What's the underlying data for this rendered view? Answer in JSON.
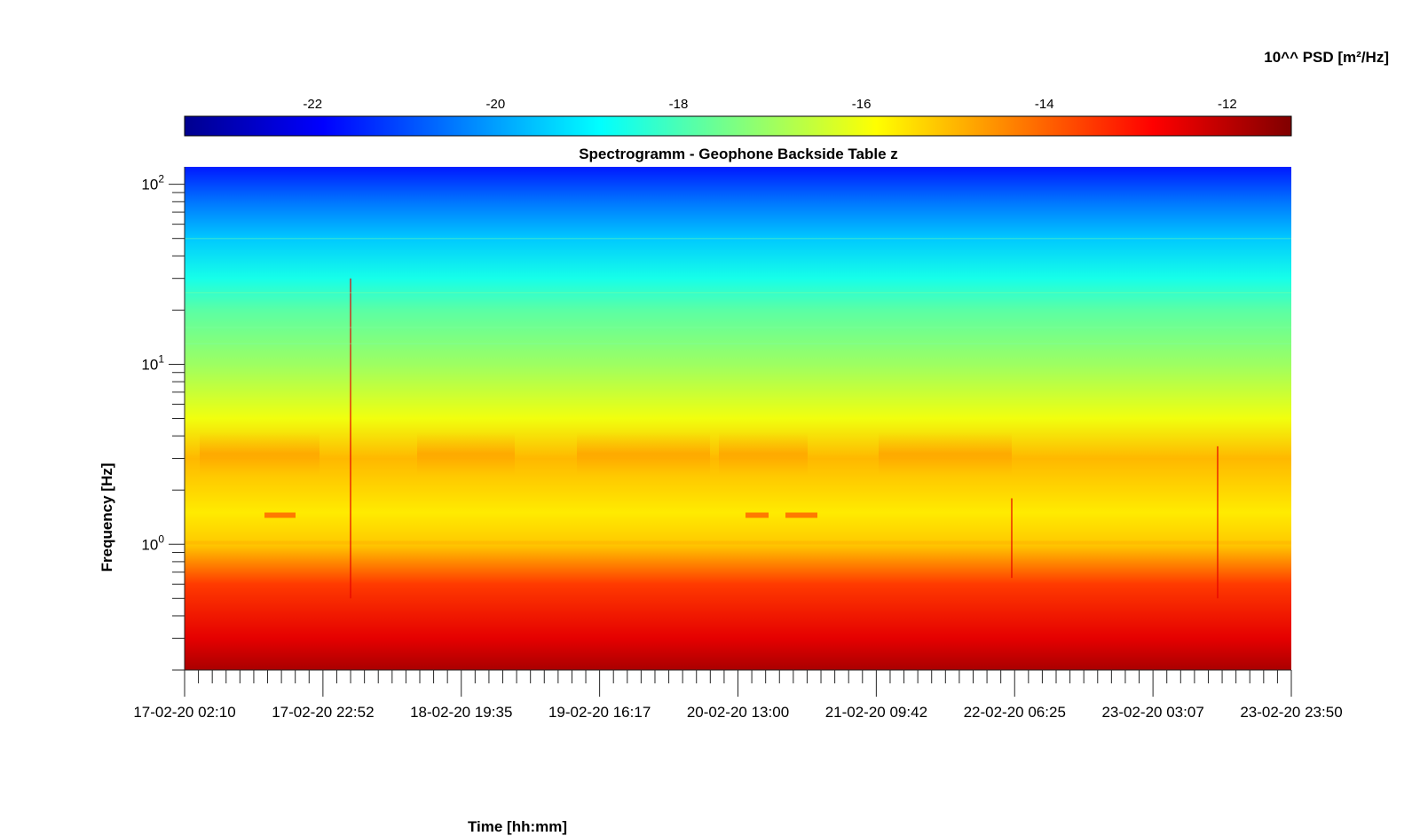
{
  "chart_data": {
    "type": "heatmap",
    "title": "Spectrogramm - Geophone Backside Table z",
    "xlabel": "Time [hh:mm]",
    "ylabel": "Frequency [Hz]",
    "y_scale": "log",
    "ylim": [
      0.2,
      125
    ],
    "y_ticks": [
      {
        "value": 1,
        "base": "10",
        "exp": "0"
      },
      {
        "value": 10,
        "base": "10",
        "exp": "1"
      },
      {
        "value": 100,
        "base": "10",
        "exp": "2"
      }
    ],
    "x_ticks": [
      "17-02-20 02:10",
      "17-02-20 22:52",
      "18-02-20 19:35",
      "19-02-20 16:17",
      "20-02-20 13:00",
      "21-02-20 09:42",
      "22-02-20 06:25",
      "23-02-20 03:07",
      "23-02-20 23:50"
    ],
    "colorbar": {
      "label": "10^^ PSD [m²/Hz]",
      "range": [
        -23.4,
        -11.3
      ],
      "ticks": [
        -22,
        -20,
        -18,
        -16,
        -14,
        -12
      ],
      "colormap": "jet"
    },
    "grid": false,
    "psd_profile": [
      {
        "freq_hz": 120,
        "log10_psd": -21.5
      },
      {
        "freq_hz": 80,
        "log10_psd": -20.5
      },
      {
        "freq_hz": 50,
        "log10_psd": -19.5
      },
      {
        "freq_hz": 30,
        "log10_psd": -18.6
      },
      {
        "freq_hz": 20,
        "log10_psd": -17.8
      },
      {
        "freq_hz": 10,
        "log10_psd": -17.0
      },
      {
        "freq_hz": 5,
        "log10_psd": -16.0
      },
      {
        "freq_hz": 3,
        "log10_psd": -15.0
      },
      {
        "freq_hz": 1.5,
        "log10_psd": -15.6
      },
      {
        "freq_hz": 1,
        "log10_psd": -15.2
      },
      {
        "freq_hz": 0.6,
        "log10_psd": -13.5
      },
      {
        "freq_hz": 0.3,
        "log10_psd": -12.5
      },
      {
        "freq_hz": 0.2,
        "log10_psd": -11.8
      }
    ]
  }
}
